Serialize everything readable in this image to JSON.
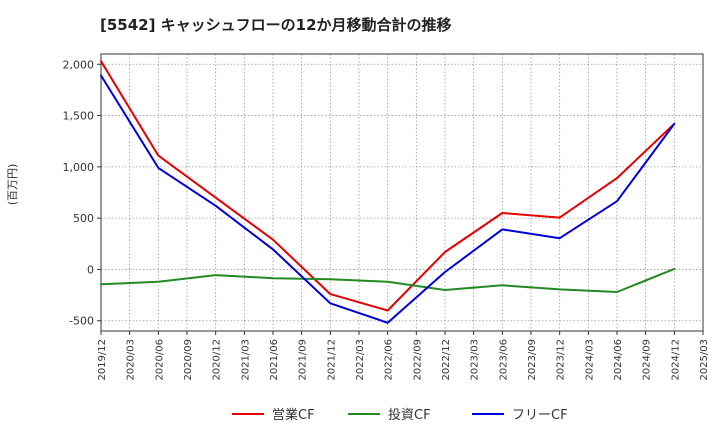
{
  "chart_data": {
    "type": "line",
    "title": "[5542]  キャッシュフローの12か月移動合計の推移",
    "ylabel": "(百万円)",
    "xlabel": "",
    "ylim": [
      -600,
      2100
    ],
    "yticks": [
      2000,
      1500,
      1000,
      500,
      0,
      -500
    ],
    "ytick_labels": [
      "2,000",
      "1,500",
      "1,000",
      "500",
      "0",
      "-500"
    ],
    "categories": [
      "2019/12",
      "2020/03",
      "2020/06",
      "2020/09",
      "2020/12",
      "2021/03",
      "2021/06",
      "2021/09",
      "2021/12",
      "2022/03",
      "2022/06",
      "2022/09",
      "2022/12",
      "2023/03",
      "2023/06",
      "2023/09",
      "2023/12",
      "2024/03",
      "2024/06",
      "2024/09",
      "2024/12",
      "2025/03"
    ],
    "grid": true,
    "legend": "bottom",
    "series": [
      {
        "name": "営業CF",
        "color": "#e60000",
        "points": [
          [
            0,
            2030
          ],
          [
            2,
            1110
          ],
          [
            6,
            290
          ],
          [
            8,
            -240
          ],
          [
            10,
            -400
          ],
          [
            12,
            170
          ],
          [
            14,
            550
          ],
          [
            16,
            505
          ],
          [
            18,
            890
          ],
          [
            20,
            1420
          ]
        ]
      },
      {
        "name": "投資CF",
        "color": "#228b22",
        "points": [
          [
            0,
            -145
          ],
          [
            2,
            -120
          ],
          [
            4,
            -55
          ],
          [
            6,
            -85
          ],
          [
            8,
            -95
          ],
          [
            10,
            -120
          ],
          [
            12,
            -200
          ],
          [
            14,
            -155
          ],
          [
            16,
            -195
          ],
          [
            18,
            -220
          ],
          [
            20,
            5
          ]
        ]
      },
      {
        "name": "フリーCF",
        "color": "#0000dd",
        "points": [
          [
            0,
            1890
          ],
          [
            2,
            990
          ],
          [
            4,
            620
          ],
          [
            6,
            195
          ],
          [
            8,
            -330
          ],
          [
            10,
            -520
          ],
          [
            12,
            -25
          ],
          [
            14,
            390
          ],
          [
            16,
            305
          ],
          [
            18,
            665
          ],
          [
            20,
            1420
          ]
        ]
      }
    ]
  }
}
